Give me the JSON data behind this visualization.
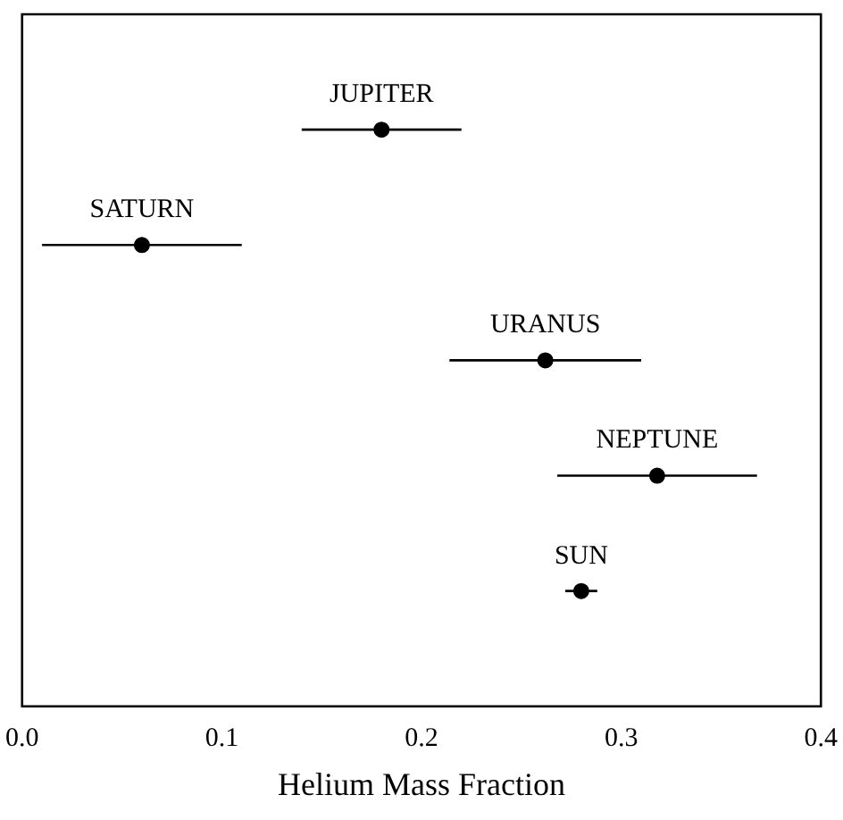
{
  "chart_data": {
    "type": "scatter",
    "orientation": "horizontal",
    "xlabel": "Helium Mass Fraction",
    "categories": [
      "JUPITER",
      "SATURN",
      "URANUS",
      "NEPTUNE",
      "SUN"
    ],
    "values": [
      0.18,
      0.06,
      0.262,
      0.318,
      0.28
    ],
    "errors": [
      0.04,
      0.05,
      0.048,
      0.05,
      0.008
    ],
    "color": "#000000",
    "marker": "circle",
    "tick_labels": "x",
    "xlim": [
      0,
      0.4
    ],
    "xticks": [
      {
        "value": 0,
        "label": "0.0"
      },
      0.1,
      0.2,
      0.3,
      0.4
    ]
  }
}
